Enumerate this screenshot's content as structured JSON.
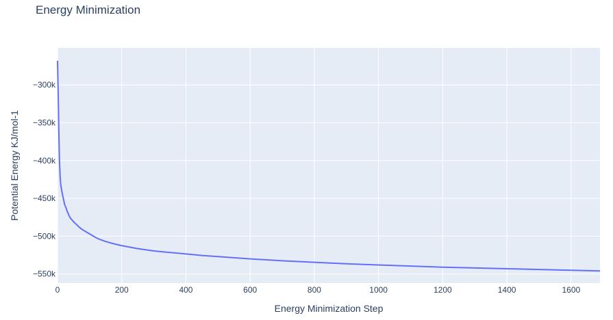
{
  "chart_data": {
    "type": "line",
    "title": "Energy Minimization",
    "xlabel": "Energy Minimization Step",
    "ylabel": "Potential Energy KJ/mol-1",
    "xlim": [
      0,
      1690
    ],
    "ylim": [
      -562000,
      -251000
    ],
    "x_ticks": [
      0,
      200,
      400,
      600,
      800,
      1000,
      1200,
      1400,
      1600
    ],
    "x_tick_labels": [
      "0",
      "200",
      "400",
      "600",
      "800",
      "1000",
      "1200",
      "1400",
      "1600"
    ],
    "y_ticks": [
      -300000,
      -350000,
      -400000,
      -450000,
      -500000,
      -550000
    ],
    "y_tick_labels": [
      "−300k",
      "−350k",
      "−400k",
      "−450k",
      "−500k",
      "−550k"
    ],
    "grid": true,
    "plot_bg": "#e5ecf6",
    "grid_color": "#ffffff",
    "line_color": "#636efa",
    "text_color": "#2a3f5f",
    "series": [
      {
        "x": [
          0,
          2,
          4,
          6,
          8,
          10,
          14,
          18,
          22,
          26,
          30,
          35,
          40,
          50,
          60,
          70,
          80,
          100,
          120,
          130,
          150,
          175,
          200,
          250,
          300,
          350,
          400,
          450,
          500,
          600,
          700,
          800,
          900,
          1000,
          1100,
          1200,
          1300,
          1400,
          1500,
          1600,
          1690
        ],
        "y": [
          -268000,
          -310000,
          -360000,
          -400000,
          -420000,
          -432000,
          -442000,
          -450000,
          -458000,
          -462000,
          -467000,
          -472000,
          -476000,
          -481000,
          -485000,
          -489000,
          -492000,
          -497000,
          -502000,
          -504000,
          -507000,
          -510000,
          -512500,
          -516500,
          -519500,
          -521500,
          -523500,
          -525500,
          -527000,
          -530000,
          -532500,
          -534500,
          -536500,
          -538000,
          -539500,
          -541000,
          -542000,
          -543000,
          -544000,
          -545000,
          -546000
        ]
      }
    ]
  }
}
